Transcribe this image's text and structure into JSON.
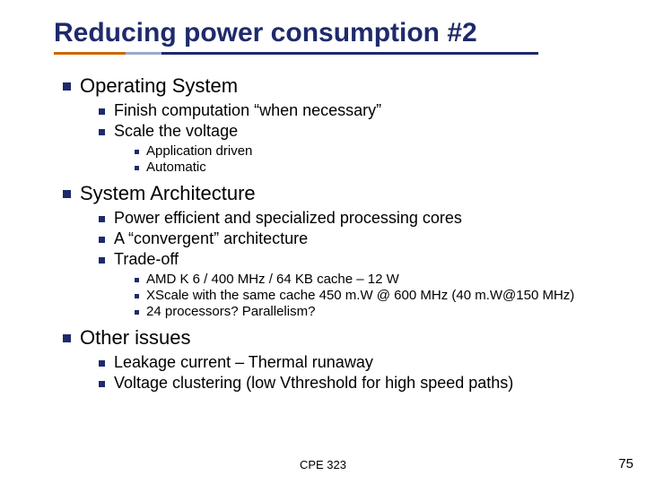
{
  "colors": {
    "title": "#1f2a6b",
    "bullet": "#1f2a6b",
    "underline_accent": "#cc6600",
    "underline_mid": "#99aacc",
    "underline_main": "#1f2a6b",
    "background": "#ffffff",
    "text": "#000000"
  },
  "typography": {
    "title_fontsize": 30,
    "level1_fontsize": 22,
    "level2_fontsize": 18,
    "level3_fontsize": 15,
    "footer_fontsize": 13,
    "pagenum_fontsize": 15,
    "font_family": "Arial"
  },
  "title": "Reducing power consumption #2",
  "sections": [
    {
      "label": "Operating System",
      "items": [
        {
          "label": "Finish computation “when necessary”"
        },
        {
          "label": "Scale the voltage",
          "items": [
            {
              "label": "Application driven"
            },
            {
              "label": "Automatic"
            }
          ]
        }
      ]
    },
    {
      "label": "System Architecture",
      "items": [
        {
          "label": "Power efficient and specialized processing cores"
        },
        {
          "label": "A “convergent” architecture"
        },
        {
          "label": "Trade-off",
          "items": [
            {
              "label": "AMD K 6 / 400 MHz / 64 KB cache – 12 W"
            },
            {
              "label": "XScale with the same cache 450 m.W @ 600 MHz (40 m.W@150 MHz)"
            },
            {
              "label": "24 processors? Parallelism?"
            }
          ]
        }
      ]
    },
    {
      "label": "Other issues",
      "items": [
        {
          "label": "Leakage current – Thermal runaway"
        },
        {
          "label": "Voltage clustering (low Vthreshold for high speed paths)"
        }
      ]
    }
  ],
  "footer": {
    "course": "CPE 323",
    "page": "75"
  }
}
